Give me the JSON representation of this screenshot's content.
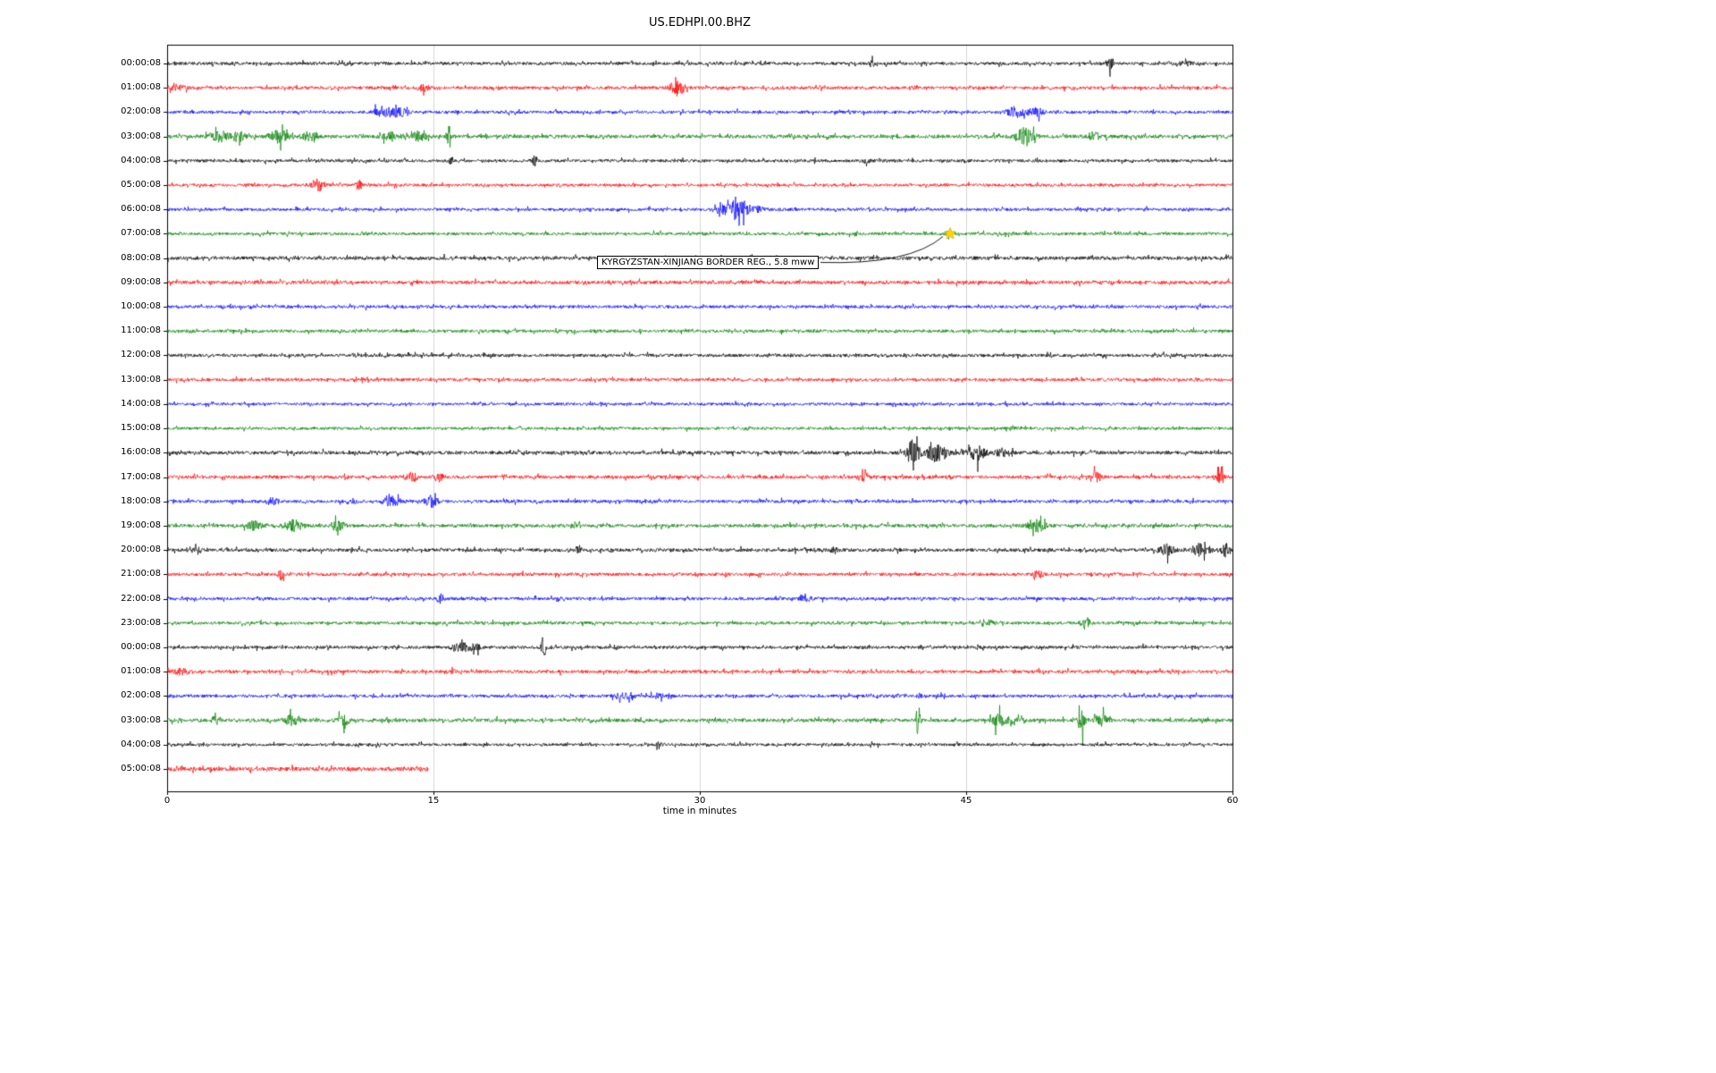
{
  "title": "US.EDHPI.00.BHZ",
  "chart_data": {
    "type": "line",
    "subtype": "seismogram-dayplot",
    "title": "US.EDHPI.00.BHZ",
    "xlabel": "time in minutes",
    "xlim": [
      0,
      60
    ],
    "x_ticks": [
      0,
      15,
      30,
      45,
      60
    ],
    "grid": true,
    "grid_color": "#cccccc",
    "trace_color_cycle": [
      "#000000",
      "#ff0000",
      "#0000ff",
      "#008000"
    ],
    "annotation": {
      "label": "KYRGYZSTAN-XINJIANG BORDER REG., 5.8 mww",
      "marker": "star",
      "marker_color": "#ffd700",
      "row": 7,
      "minute": 44.1
    },
    "rows": [
      {
        "label": "00:00:08",
        "color": "#000000",
        "noise": 1.0,
        "end": 60,
        "events": [
          {
            "t": 39.7,
            "a": 2.5,
            "w": 0.12
          },
          {
            "t": 53.1,
            "a": 3.5,
            "w": 0.15
          },
          {
            "t": 57.2,
            "a": 1.2,
            "w": 0.8
          }
        ]
      },
      {
        "label": "01:00:08",
        "color": "#ff0000",
        "noise": 1.0,
        "end": 60,
        "events": [
          {
            "t": 0.5,
            "a": 1.5,
            "w": 0.5
          },
          {
            "t": 14.4,
            "a": 2.0,
            "w": 0.3
          },
          {
            "t": 28.8,
            "a": 4.0,
            "w": 0.45
          }
        ]
      },
      {
        "label": "02:00:08",
        "color": "#0000ff",
        "noise": 0.95,
        "end": 60,
        "events": [
          {
            "t": 12.2,
            "a": 3.5,
            "w": 0.5
          },
          {
            "t": 13.1,
            "a": 3.0,
            "w": 0.4
          },
          {
            "t": 47.8,
            "a": 3.5,
            "w": 0.5
          },
          {
            "t": 48.9,
            "a": 3.0,
            "w": 0.4
          }
        ]
      },
      {
        "label": "03:00:08",
        "color": "#008000",
        "noise": 1.15,
        "end": 60,
        "events": [
          {
            "t": 2.9,
            "a": 3.0,
            "w": 0.5
          },
          {
            "t": 4.0,
            "a": 2.5,
            "w": 0.4
          },
          {
            "t": 6.3,
            "a": 3.5,
            "w": 0.5
          },
          {
            "t": 8.0,
            "a": 2.0,
            "w": 0.5
          },
          {
            "t": 12.6,
            "a": 2.0,
            "w": 0.5
          },
          {
            "t": 14.2,
            "a": 2.5,
            "w": 0.4
          },
          {
            "t": 15.9,
            "a": 7.0,
            "w": 0.12
          },
          {
            "t": 48.3,
            "a": 4.5,
            "w": 0.5
          },
          {
            "t": 52.2,
            "a": 2.5,
            "w": 0.3
          }
        ]
      },
      {
        "label": "04:00:08",
        "color": "#000000",
        "noise": 0.95,
        "end": 60,
        "events": [
          {
            "t": 16.0,
            "a": 2.0,
            "w": 0.1
          },
          {
            "t": 20.7,
            "a": 3.5,
            "w": 0.15
          },
          {
            "t": 39.4,
            "a": 1.5,
            "w": 0.2
          }
        ]
      },
      {
        "label": "05:00:08",
        "color": "#ff0000",
        "noise": 0.95,
        "end": 60,
        "events": [
          {
            "t": 8.5,
            "a": 4.5,
            "w": 0.35
          },
          {
            "t": 10.8,
            "a": 3.5,
            "w": 0.15
          }
        ]
      },
      {
        "label": "06:00:08",
        "color": "#0000ff",
        "noise": 0.95,
        "end": 60,
        "events": [
          {
            "t": 31.3,
            "a": 3.0,
            "w": 0.5
          },
          {
            "t": 32.1,
            "a": 6.5,
            "w": 0.4
          },
          {
            "t": 33.0,
            "a": 3.0,
            "w": 0.5
          }
        ]
      },
      {
        "label": "07:00:08",
        "color": "#008000",
        "noise": 0.95,
        "end": 60,
        "events": [
          {
            "t": 44.1,
            "a": 1.5,
            "w": 0.3
          }
        ]
      },
      {
        "label": "08:00:08",
        "color": "#000000",
        "noise": 1.15,
        "end": 60,
        "events": []
      },
      {
        "label": "09:00:08",
        "color": "#ff0000",
        "noise": 1.1,
        "end": 60,
        "events": []
      },
      {
        "label": "10:00:08",
        "color": "#0000ff",
        "noise": 1.0,
        "end": 60,
        "events": []
      },
      {
        "label": "11:00:08",
        "color": "#008000",
        "noise": 1.0,
        "end": 60,
        "events": []
      },
      {
        "label": "12:00:08",
        "color": "#000000",
        "noise": 1.0,
        "end": 60,
        "events": []
      },
      {
        "label": "13:00:08",
        "color": "#ff0000",
        "noise": 1.0,
        "end": 60,
        "events": []
      },
      {
        "label": "14:00:08",
        "color": "#0000ff",
        "noise": 0.9,
        "end": 60,
        "events": []
      },
      {
        "label": "15:00:08",
        "color": "#008000",
        "noise": 0.9,
        "end": 60,
        "events": [
          {
            "t": 47.7,
            "a": 1.5,
            "w": 0.3
          }
        ]
      },
      {
        "label": "16:00:08",
        "color": "#000000",
        "noise": 1.15,
        "end": 60,
        "events": [
          {
            "t": 42.0,
            "a": 7.0,
            "w": 0.35
          },
          {
            "t": 43.3,
            "a": 4.5,
            "w": 0.6
          },
          {
            "t": 45.6,
            "a": 4.5,
            "w": 0.45
          },
          {
            "t": 47.0,
            "a": 2.0,
            "w": 0.4
          }
        ]
      },
      {
        "label": "17:00:08",
        "color": "#ff0000",
        "noise": 1.1,
        "end": 60,
        "events": [
          {
            "t": 13.8,
            "a": 2.5,
            "w": 0.25
          },
          {
            "t": 15.3,
            "a": 2.5,
            "w": 0.25
          },
          {
            "t": 39.3,
            "a": 2.5,
            "w": 0.2
          },
          {
            "t": 52.3,
            "a": 2.5,
            "w": 0.25
          },
          {
            "t": 59.3,
            "a": 3.5,
            "w": 0.3
          }
        ]
      },
      {
        "label": "18:00:08",
        "color": "#0000ff",
        "noise": 1.0,
        "end": 60,
        "events": [
          {
            "t": 5.9,
            "a": 2.5,
            "w": 0.3
          },
          {
            "t": 10.4,
            "a": 1.5,
            "w": 0.3
          },
          {
            "t": 12.6,
            "a": 3.0,
            "w": 0.5
          },
          {
            "t": 14.9,
            "a": 3.5,
            "w": 0.35
          }
        ]
      },
      {
        "label": "19:00:08",
        "color": "#008000",
        "noise": 1.1,
        "end": 60,
        "events": [
          {
            "t": 4.9,
            "a": 2.5,
            "w": 0.4
          },
          {
            "t": 7.1,
            "a": 3.0,
            "w": 0.5
          },
          {
            "t": 9.6,
            "a": 2.5,
            "w": 0.4
          },
          {
            "t": 23.0,
            "a": 1.5,
            "w": 0.3
          },
          {
            "t": 49.0,
            "a": 3.0,
            "w": 0.5
          }
        ]
      },
      {
        "label": "20:00:08",
        "color": "#000000",
        "noise": 1.1,
        "end": 60,
        "events": [
          {
            "t": 1.6,
            "a": 3.0,
            "w": 0.2
          },
          {
            "t": 23.2,
            "a": 3.5,
            "w": 0.12
          },
          {
            "t": 37.6,
            "a": 1.8,
            "w": 0.2
          },
          {
            "t": 56.3,
            "a": 3.0,
            "w": 0.4
          },
          {
            "t": 58.2,
            "a": 3.5,
            "w": 0.5
          },
          {
            "t": 59.6,
            "a": 3.5,
            "w": 0.3
          }
        ]
      },
      {
        "label": "21:00:08",
        "color": "#ff0000",
        "noise": 1.0,
        "end": 60,
        "events": [
          {
            "t": 6.4,
            "a": 3.5,
            "w": 0.15
          },
          {
            "t": 49.0,
            "a": 2.5,
            "w": 0.3
          }
        ]
      },
      {
        "label": "22:00:08",
        "color": "#0000ff",
        "noise": 1.0,
        "end": 60,
        "events": [
          {
            "t": 15.4,
            "a": 2.5,
            "w": 0.2
          },
          {
            "t": 36.0,
            "a": 1.2,
            "w": 0.3
          }
        ]
      },
      {
        "label": "23:00:08",
        "color": "#008000",
        "noise": 1.0,
        "end": 60,
        "events": [
          {
            "t": 46.3,
            "a": 1.5,
            "w": 0.3
          },
          {
            "t": 51.7,
            "a": 3.5,
            "w": 0.25
          }
        ]
      },
      {
        "label": "00:00:08",
        "color": "#000000",
        "noise": 1.0,
        "end": 60,
        "events": [
          {
            "t": 16.6,
            "a": 2.5,
            "w": 0.5
          },
          {
            "t": 17.4,
            "a": 2.0,
            "w": 0.3
          },
          {
            "t": 21.2,
            "a": 8.0,
            "w": 0.12
          }
        ]
      },
      {
        "label": "01:00:08",
        "color": "#ff0000",
        "noise": 1.0,
        "end": 60,
        "events": [
          {
            "t": 0.8,
            "a": 1.5,
            "w": 0.6
          },
          {
            "t": 16.1,
            "a": 2.5,
            "w": 0.15
          }
        ]
      },
      {
        "label": "02:00:08",
        "color": "#0000ff",
        "noise": 1.0,
        "end": 60,
        "events": [
          {
            "t": 25.8,
            "a": 2.5,
            "w": 0.5
          },
          {
            "t": 27.6,
            "a": 2.0,
            "w": 0.3
          },
          {
            "t": 42.4,
            "a": 1.5,
            "w": 0.15
          }
        ]
      },
      {
        "label": "03:00:08",
        "color": "#008000",
        "noise": 1.15,
        "end": 60,
        "events": [
          {
            "t": 2.7,
            "a": 4.5,
            "w": 0.15
          },
          {
            "t": 7.0,
            "a": 2.5,
            "w": 0.4
          },
          {
            "t": 9.9,
            "a": 3.5,
            "w": 0.3
          },
          {
            "t": 42.3,
            "a": 8.0,
            "w": 0.12
          },
          {
            "t": 46.9,
            "a": 3.5,
            "w": 0.4
          },
          {
            "t": 47.9,
            "a": 3.5,
            "w": 0.3
          },
          {
            "t": 51.5,
            "a": 7.5,
            "w": 0.18
          },
          {
            "t": 52.6,
            "a": 3.0,
            "w": 0.4
          }
        ]
      },
      {
        "label": "04:00:08",
        "color": "#000000",
        "noise": 0.9,
        "end": 60,
        "events": [
          {
            "t": 27.7,
            "a": 3.0,
            "w": 0.12
          }
        ]
      },
      {
        "label": "05:00:08",
        "color": "#ff0000",
        "noise": 1.3,
        "end": 14.7,
        "events": []
      }
    ]
  }
}
